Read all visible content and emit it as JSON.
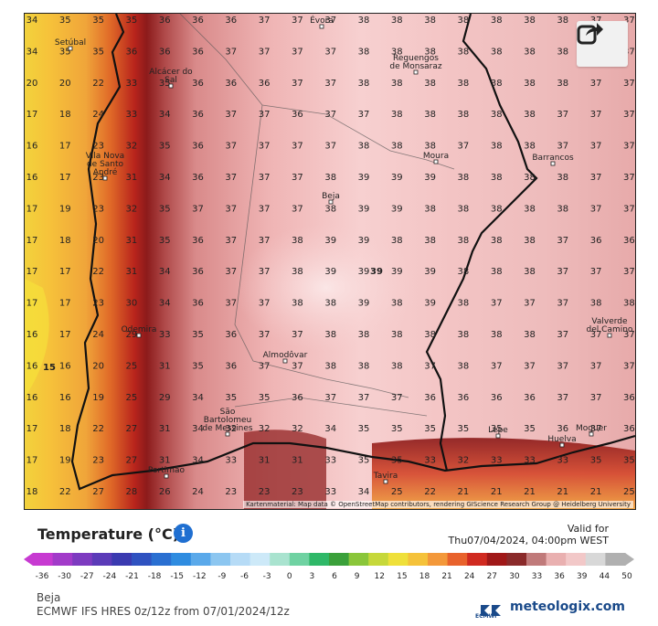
{
  "map": {
    "towns": [
      {
        "name": "Évora"
      },
      {
        "name": "Setúbal"
      },
      {
        "name": "Alcácer do Sal"
      },
      {
        "name": "Reguengos de Monsaraz"
      },
      {
        "name": "Vila Nova de Santo André"
      },
      {
        "name": "Moura"
      },
      {
        "name": "Barrancos"
      },
      {
        "name": "Beja"
      },
      {
        "name": "Odemira"
      },
      {
        "name": "Almodôvar"
      },
      {
        "name": "Valverde del Camino"
      },
      {
        "name": "São Bartolomeu de Messines"
      },
      {
        "name": "Lepe"
      },
      {
        "name": "Moguer"
      },
      {
        "name": "Huelva"
      },
      {
        "name": "Portimão"
      },
      {
        "name": "Tavira"
      }
    ],
    "grid_values": [
      [
        "34",
        "35",
        "35",
        "35",
        "36",
        "36",
        "36",
        "37",
        "37",
        "37",
        "38",
        "38",
        "38",
        "38",
        "38",
        "38",
        "38",
        "37",
        "37"
      ],
      [
        "34",
        "35",
        "35",
        "36",
        "36",
        "36",
        "37",
        "37",
        "37",
        "37",
        "38",
        "38",
        "38",
        "38",
        "38",
        "38",
        "38",
        "37",
        "37"
      ],
      [
        "20",
        "20",
        "22",
        "33",
        "35",
        "36",
        "36",
        "36",
        "37",
        "37",
        "38",
        "38",
        "38",
        "38",
        "38",
        "38",
        "38",
        "37",
        "37"
      ],
      [
        "17",
        "18",
        "24",
        "33",
        "34",
        "36",
        "37",
        "37",
        "36",
        "37",
        "37",
        "38",
        "38",
        "38",
        "38",
        "38",
        "37",
        "37",
        "37"
      ],
      [
        "16",
        "17",
        "23",
        "32",
        "35",
        "36",
        "37",
        "37",
        "37",
        "37",
        "38",
        "38",
        "38",
        "37",
        "38",
        "38",
        "37",
        "37",
        "37"
      ],
      [
        "16",
        "17",
        "23",
        "31",
        "34",
        "36",
        "37",
        "37",
        "37",
        "38",
        "39",
        "39",
        "39",
        "38",
        "38",
        "38",
        "38",
        "37",
        "37"
      ],
      [
        "17",
        "19",
        "23",
        "32",
        "35",
        "37",
        "37",
        "37",
        "37",
        "38",
        "39",
        "39",
        "38",
        "38",
        "38",
        "38",
        "38",
        "37",
        "37"
      ],
      [
        "17",
        "18",
        "20",
        "31",
        "35",
        "36",
        "37",
        "37",
        "38",
        "39",
        "39",
        "38",
        "38",
        "38",
        "38",
        "38",
        "37",
        "36",
        "36"
      ],
      [
        "17",
        "17",
        "22",
        "31",
        "34",
        "36",
        "37",
        "37",
        "38",
        "39",
        "39",
        "39",
        "39",
        "38",
        "38",
        "38",
        "37",
        "37",
        "37"
      ],
      [
        "17",
        "17",
        "23",
        "30",
        "34",
        "36",
        "37",
        "37",
        "38",
        "38",
        "39",
        "38",
        "39",
        "38",
        "37",
        "37",
        "37",
        "38",
        "38"
      ],
      [
        "16",
        "17",
        "24",
        "29",
        "33",
        "35",
        "36",
        "37",
        "37",
        "38",
        "38",
        "38",
        "38",
        "38",
        "38",
        "38",
        "37",
        "37",
        "37"
      ],
      [
        "16",
        "16",
        "20",
        "25",
        "31",
        "35",
        "36",
        "37",
        "37",
        "38",
        "38",
        "38",
        "37",
        "38",
        "37",
        "37",
        "37",
        "37",
        "37"
      ],
      [
        "16",
        "16",
        "19",
        "25",
        "29",
        "34",
        "35",
        "35",
        "36",
        "37",
        "37",
        "37",
        "36",
        "36",
        "36",
        "36",
        "37",
        "37",
        "36"
      ],
      [
        "17",
        "18",
        "22",
        "27",
        "31",
        "34",
        "32",
        "32",
        "32",
        "34",
        "35",
        "35",
        "35",
        "35",
        "35",
        "35",
        "36",
        "37",
        "36"
      ],
      [
        "17",
        "19",
        "23",
        "27",
        "31",
        "34",
        "33",
        "31",
        "31",
        "33",
        "35",
        "35",
        "33",
        "32",
        "33",
        "33",
        "33",
        "35",
        "35"
      ],
      [
        "18",
        "22",
        "27",
        "28",
        "26",
        "24",
        "23",
        "23",
        "23",
        "33",
        "34",
        "25",
        "22",
        "21",
        "21",
        "21",
        "21",
        "21",
        "25"
      ]
    ],
    "peak_value": "39",
    "local_max_label": "39",
    "local_min_label": "15",
    "attribution": "Kartenmaterial: Map data © OpenStreetMap contributors, rendering GIScience Research Group @ Heidelberg University",
    "share_icon": "share-icon"
  },
  "header": {
    "title": "Temperature (°C)",
    "info_icon": "info-icon",
    "valid_label": "Valid for",
    "valid_time": "Thu07/04/2024, 04:00pm WEST"
  },
  "legend": {
    "ticks": [
      "-36",
      "-30",
      "-27",
      "-24",
      "-21",
      "-18",
      "-15",
      "-12",
      "-9",
      "-6",
      "-3",
      "0",
      "3",
      "6",
      "9",
      "12",
      "15",
      "18",
      "21",
      "24",
      "27",
      "30",
      "33",
      "36",
      "39",
      "44",
      "50"
    ],
    "colors": [
      "#c73ad1",
      "#a23bc9",
      "#7d3bc0",
      "#5b3bb8",
      "#3a3ab0",
      "#2f52c0",
      "#2a6fd1",
      "#2f8ce0",
      "#5aa9ea",
      "#8cc6f0",
      "#b6dbf6",
      "#cde9f8",
      "#a9e3cf",
      "#6fd2a2",
      "#2fb868",
      "#3aa03a",
      "#8ac63a",
      "#c6d83a",
      "#efe03a",
      "#f5c23a",
      "#f3983a",
      "#e8622c",
      "#d02a20",
      "#a01818",
      "#8a2a2a",
      "#c07a7a",
      "#e9b0b0",
      "#f2c8c8",
      "#d8d8d8",
      "#b0b0b0"
    ]
  },
  "footer": {
    "location": "Beja",
    "model": "ECMWF IFS HRES 0z/12z from 07/01/2024/12z",
    "ecmwf_label": "ECMWF",
    "brand": "meteologix.com"
  }
}
